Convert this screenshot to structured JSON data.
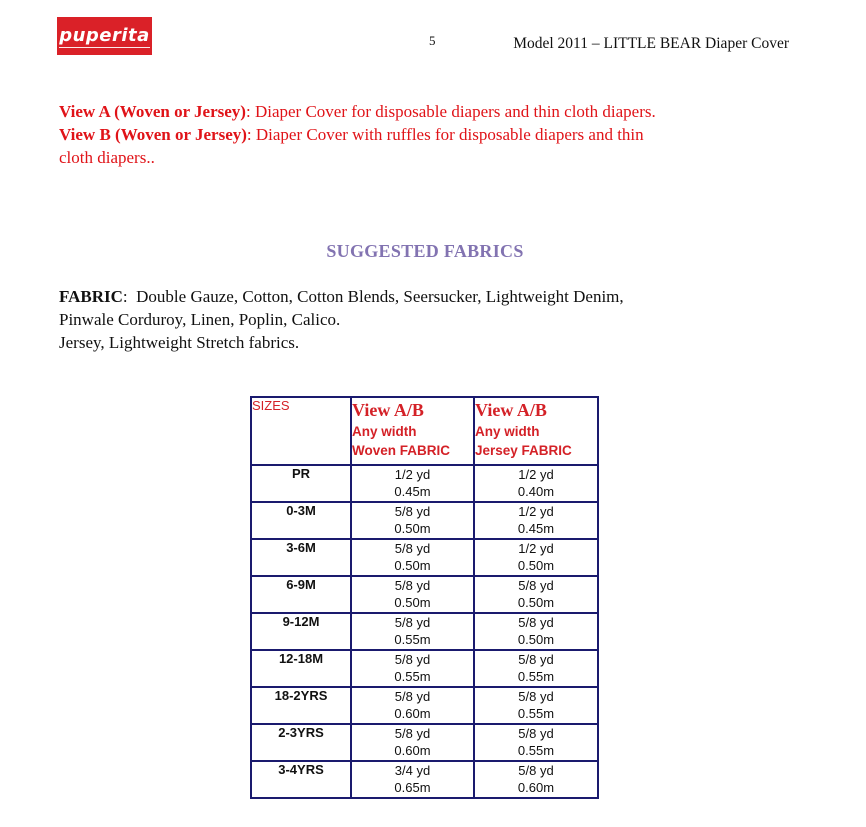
{
  "colors": {
    "logo_red": "#da2128",
    "text_red": "#e01318",
    "table_red": "#d42127",
    "heading_purple": "#8273b1",
    "table_border_navy": "#1a1a6e",
    "text_black": "#111111"
  },
  "header": {
    "logo_text": "puperita",
    "page_number": "5",
    "title": "Model 2011  – LITTLE BEAR Diaper Cover"
  },
  "intro": {
    "lines": [
      {
        "bold": "View A (Woven or Jersey)",
        "text": ": Diaper Cover for disposable diapers and thin cloth diapers."
      },
      {
        "bold": "View B (Woven or Jersey)",
        "text": ": Diaper Cover with ruffles for disposable diapers and thin"
      },
      {
        "bold": "",
        "text": "cloth diapers.."
      }
    ]
  },
  "fabrics": {
    "heading": "SUGGESTED FABRICS",
    "label": "FABRIC",
    "line1_rest": ":  Double Gauze, Cotton, Cotton Blends, Seersucker, Lightweight Denim,",
    "line2": "Pinwale Corduroy, Linen, Poplin, Calico.",
    "line3": "Jersey, Lightweight Stretch fabrics."
  },
  "table": {
    "sizes_header": "SIZES",
    "woven": {
      "title": "View A/B",
      "sub1": "Any width",
      "sub2": "Woven FABRIC"
    },
    "jersey": {
      "title": "View A/B",
      "sub1": "Any width",
      "sub2": "Jersey FABRIC"
    },
    "rows": [
      {
        "size": "PR",
        "woven_yd": "1/2 yd",
        "woven_m": "0.45m",
        "jersey_yd": "1/2 yd",
        "jersey_m": "0.40m"
      },
      {
        "size": "0-3M",
        "woven_yd": "5/8 yd",
        "woven_m": "0.50m",
        "jersey_yd": "1/2 yd",
        "jersey_m": "0.45m"
      },
      {
        "size": "3-6M",
        "woven_yd": "5/8 yd",
        "woven_m": "0.50m",
        "jersey_yd": "1/2 yd",
        "jersey_m": "0.50m"
      },
      {
        "size": "6-9M",
        "woven_yd": "5/8 yd",
        "woven_m": "0.50m",
        "jersey_yd": "5/8 yd",
        "jersey_m": "0.50m"
      },
      {
        "size": "9-12M",
        "woven_yd": "5/8 yd",
        "woven_m": "0.55m",
        "jersey_yd": "5/8 yd",
        "jersey_m": "0.50m"
      },
      {
        "size": "12-18M",
        "woven_yd": "5/8 yd",
        "woven_m": "0.55m",
        "jersey_yd": "5/8 yd",
        "jersey_m": "0.55m"
      },
      {
        "size": "18-2YRS",
        "woven_yd": "5/8 yd",
        "woven_m": "0.60m",
        "jersey_yd": "5/8 yd",
        "jersey_m": "0.55m"
      },
      {
        "size": "2-3YRS",
        "woven_yd": "5/8 yd",
        "woven_m": "0.60m",
        "jersey_yd": "5/8 yd",
        "jersey_m": "0.55m"
      },
      {
        "size": "3-4YRS",
        "woven_yd": "3/4 yd",
        "woven_m": "0.65m",
        "jersey_yd": "5/8 yd",
        "jersey_m": "0.60m"
      }
    ]
  }
}
